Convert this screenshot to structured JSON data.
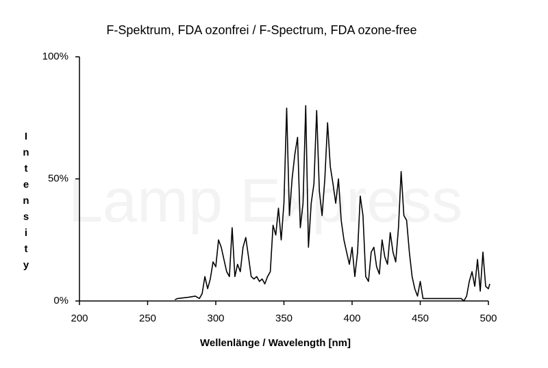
{
  "chart_data": {
    "type": "line",
    "title": "F-Spektrum, FDA ozonfrei / F-Spectrum, FDA ozone-free",
    "watermark": "Lamp Express",
    "xlabel": "Wellenlänge / Wavelength  [nm]",
    "ylabel": "Intensity",
    "xlim": [
      200,
      500
    ],
    "xticks": [
      200,
      250,
      300,
      350,
      400,
      450,
      500
    ],
    "ylim": [
      0,
      100
    ],
    "yticks": [
      {
        "value": 0,
        "label": "0%"
      },
      {
        "value": 50,
        "label": "50%"
      },
      {
        "value": 100,
        "label": "100%"
      }
    ],
    "grid": false,
    "series": [
      {
        "name": "F-Spectrum",
        "color": "#000000",
        "x": [
          270,
          272,
          280,
          285,
          288,
          290,
          292,
          294,
          296,
          298,
          300,
          302,
          304,
          306,
          308,
          310,
          312,
          314,
          316,
          318,
          320,
          322,
          324,
          326,
          328,
          330,
          332,
          334,
          336,
          338,
          340,
          342,
          344,
          346,
          348,
          350,
          352,
          354,
          356,
          358,
          360,
          362,
          364,
          366,
          368,
          370,
          372,
          374,
          376,
          378,
          380,
          382,
          384,
          386,
          388,
          390,
          392,
          394,
          396,
          398,
          400,
          402,
          404,
          406,
          408,
          410,
          412,
          414,
          416,
          418,
          420,
          422,
          424,
          426,
          428,
          430,
          432,
          434,
          436,
          438,
          440,
          442,
          444,
          446,
          448,
          450,
          452,
          460,
          470,
          480,
          482,
          484,
          486,
          488,
          490,
          492,
          494,
          496,
          498,
          500,
          501
        ],
        "values": [
          0.5,
          1,
          1.5,
          2,
          1,
          3,
          10,
          5,
          9,
          16,
          14,
          25,
          22,
          17,
          12,
          10,
          30,
          10,
          15,
          12,
          22,
          26,
          18,
          10,
          9,
          10,
          8,
          9,
          7,
          10,
          12,
          31,
          27,
          38,
          25,
          40,
          79,
          35,
          50,
          60,
          67,
          30,
          40,
          80,
          22,
          40,
          48,
          78,
          45,
          35,
          50,
          73,
          55,
          48,
          40,
          50,
          33,
          25,
          20,
          15,
          22,
          10,
          20,
          43,
          35,
          10,
          8,
          20,
          22,
          14,
          11,
          25,
          18,
          15,
          28,
          20,
          16,
          30,
          53,
          35,
          33,
          20,
          10,
          5,
          2,
          8,
          1,
          1,
          1,
          1,
          0,
          2,
          8,
          12,
          6,
          17,
          4,
          20,
          6,
          5,
          7
        ]
      }
    ]
  }
}
